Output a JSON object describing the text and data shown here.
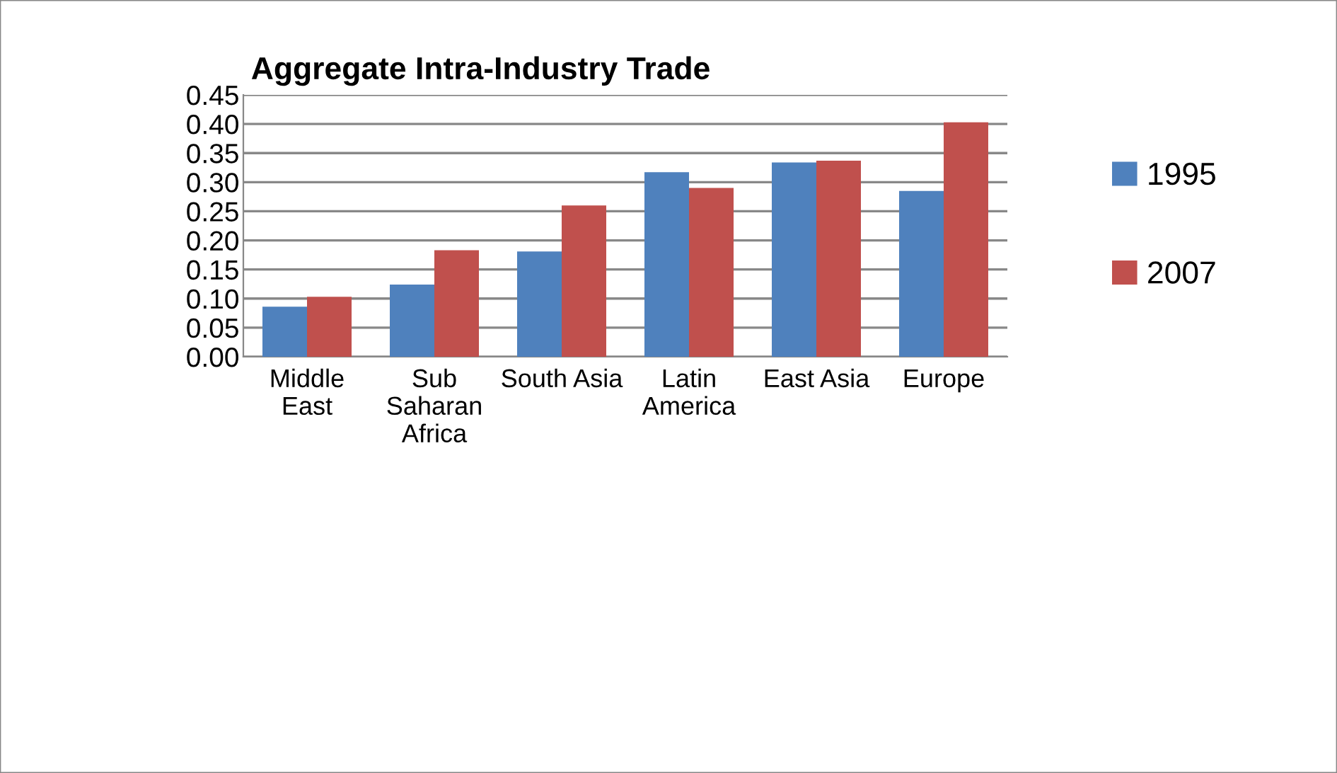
{
  "chart_data": {
    "type": "bar",
    "title": "Aggregate Intra-Industry Trade",
    "categories": [
      "Middle East",
      "Sub Saharan Africa",
      "South Asia",
      "Latin America",
      "East Asia",
      "Europe"
    ],
    "series": [
      {
        "name": "1995",
        "color": "#4f81bd",
        "values": [
          0.086,
          0.124,
          0.181,
          0.317,
          0.334,
          0.285
        ]
      },
      {
        "name": "2007",
        "color": "#c0504d",
        "values": [
          0.103,
          0.183,
          0.26,
          0.29,
          0.337,
          0.403
        ]
      }
    ],
    "ylim": [
      0,
      0.45
    ],
    "yticks": [
      {
        "value": 0,
        "label": "0.00"
      },
      {
        "value": 0.05,
        "label": "0.05"
      },
      {
        "value": 0.1,
        "label": "0.10"
      },
      {
        "value": 0.15,
        "label": "0.15"
      },
      {
        "value": 0.2,
        "label": "0.20"
      },
      {
        "value": 0.25,
        "label": "0.25"
      },
      {
        "value": 0.3,
        "label": "0.30"
      },
      {
        "value": 0.35,
        "label": "0.35"
      },
      {
        "value": 0.4,
        "label": "0.40"
      },
      {
        "value": 0.45,
        "label": "0.45"
      }
    ],
    "grid": "y",
    "legend": "right"
  }
}
